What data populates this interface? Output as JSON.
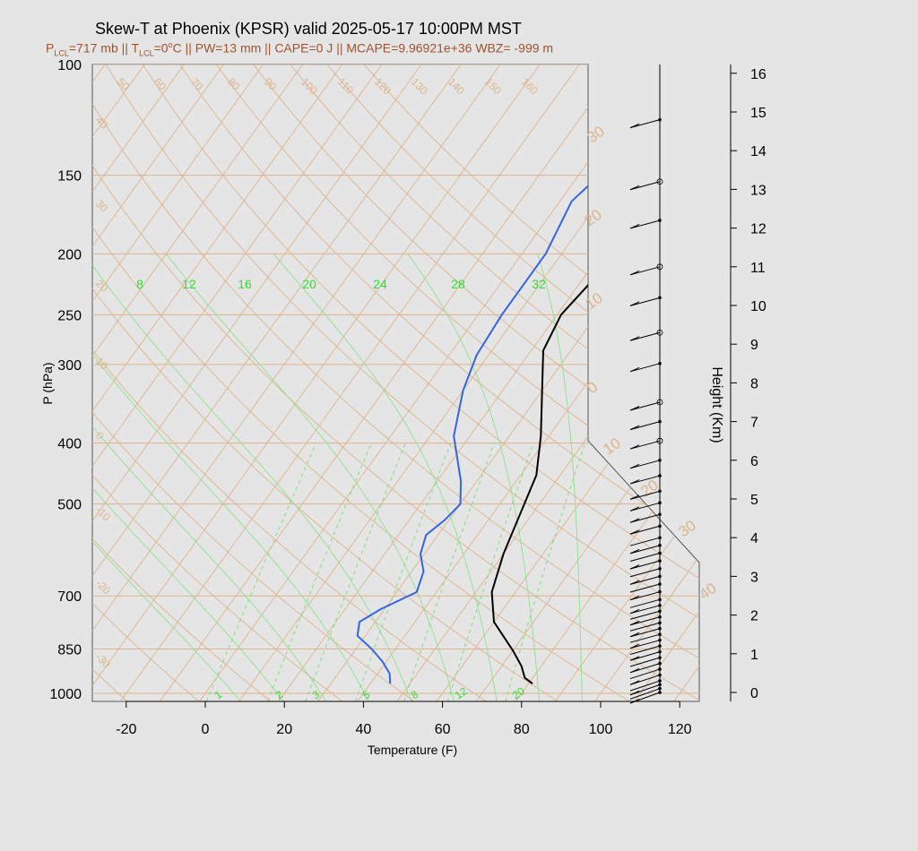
{
  "header": {
    "title": "Skew-T at Phoenix (KPSR) valid 2025-05-17 10:00PM MST",
    "plcl_label": "P",
    "plcl_sub": "LCL",
    "plcl_value": "=717 mb || T",
    "tlcl_sub": "LCL",
    "tlcl_value": "=0",
    "degree": "o",
    "rest": "C || PW=13 mm || CAPE=0 J || MCAPE=9.96921e+36 WBZ= -999 m"
  },
  "chart_data": {
    "type": "line",
    "title": "Skew-T at Phoenix (KPSR) valid 2025-05-17 10:00PM MST",
    "xlabel": "Temperature (F)",
    "ylabel": "P (hPa)",
    "y2label": "Height (Km)",
    "x_ticks": [
      "-20",
      "0",
      "20",
      "40",
      "60",
      "80",
      "100",
      "120"
    ],
    "x_tick_values": [
      -20,
      0,
      20,
      40,
      60,
      80,
      100,
      120
    ],
    "p_ticks": [
      "100",
      "150",
      "200",
      "250",
      "300",
      "400",
      "500",
      "700",
      "850",
      "1000"
    ],
    "p_tick_values": [
      100,
      150,
      200,
      250,
      300,
      400,
      500,
      700,
      850,
      1000
    ],
    "height_ticks": [
      "0",
      "1",
      "2",
      "3",
      "4",
      "5",
      "6",
      "7",
      "8",
      "9",
      "10",
      "11",
      "12",
      "13",
      "14",
      "15",
      "16"
    ],
    "height_tick_values": [
      0,
      1,
      2,
      3,
      4,
      5,
      6,
      7,
      8,
      9,
      10,
      11,
      12,
      13,
      14,
      15,
      16
    ],
    "isotherm_labels": [
      "50",
      "60",
      "70",
      "80",
      "90",
      "100",
      "110",
      "120",
      "130",
      "140",
      "150",
      "160"
    ],
    "dry_adiabat_labels_left": [
      "40",
      "30",
      "20",
      "10",
      "0",
      "-10",
      "-20",
      "-30"
    ],
    "dry_adiabat_labels_right": [
      "30",
      "20",
      "10",
      "0",
      "10",
      "20",
      "30",
      "40"
    ],
    "mixing_ratio_top_labels": [
      "8",
      "12",
      "16",
      "20",
      "24",
      "28",
      "32"
    ],
    "mixing_ratio_bottom_labels": [
      "1",
      "2",
      "3",
      "5",
      "8",
      "12",
      "20"
    ],
    "series": [
      {
        "color": "#000000",
        "points": [
          [
            81,
            965
          ],
          [
            78,
            945
          ],
          [
            75,
            905
          ],
          [
            70,
            855
          ],
          [
            60,
            770
          ],
          [
            54,
            690
          ],
          [
            50,
            600
          ],
          [
            44,
            450
          ],
          [
            38,
            390
          ],
          [
            30,
            330
          ],
          [
            23,
            285
          ],
          [
            21,
            250
          ],
          [
            24,
            200
          ],
          [
            33,
            160
          ],
          [
            47,
            130
          ],
          [
            62,
            100
          ]
        ]
      },
      {
        "color": "#3366dd",
        "points": [
          [
            45,
            965
          ],
          [
            43,
            930
          ],
          [
            39,
            890
          ],
          [
            34,
            850
          ],
          [
            28,
            810
          ],
          [
            26,
            770
          ],
          [
            29,
            735
          ],
          [
            35,
            690
          ],
          [
            33,
            640
          ],
          [
            29,
            600
          ],
          [
            27,
            560
          ],
          [
            29,
            530
          ],
          [
            30,
            500
          ],
          [
            26,
            460
          ],
          [
            16,
            390
          ],
          [
            10,
            330
          ],
          [
            7,
            290
          ],
          [
            6,
            250
          ],
          [
            6,
            200
          ],
          [
            3,
            165
          ],
          [
            7,
            140
          ],
          [
            15,
            115
          ],
          [
            23,
            100
          ]
        ]
      }
    ],
    "wind_barbs_heights_km": [
      0.0,
      0.1,
      0.2,
      0.3,
      0.45,
      0.6,
      0.75,
      0.9,
      1.05,
      1.2,
      1.35,
      1.5,
      1.65,
      1.8,
      1.95,
      2.1,
      2.25,
      2.4,
      2.6,
      2.8,
      3.0,
      3.2,
      3.4,
      3.6,
      3.8,
      4.0,
      4.3,
      4.6,
      4.9,
      5.2,
      5.6,
      6.0,
      6.5,
      7.0,
      7.5,
      8.5,
      9.3,
      10.2,
      11.0,
      12.2,
      13.2,
      14.8
    ],
    "xlim": [
      -28,
      126
    ],
    "ylim": [
      1030,
      100
    ],
    "grid": true
  }
}
